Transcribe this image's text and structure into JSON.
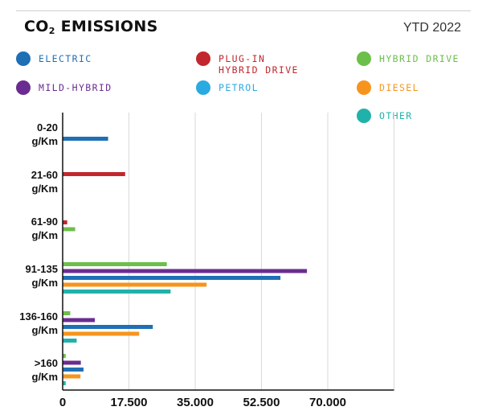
{
  "header": {
    "title_main": "CO",
    "title_sub": "2",
    "title_rest": " EMISSIONS",
    "period": "YTD 2022"
  },
  "colors": {
    "electric": "#1f6fb5",
    "plug_in_hybrid": "#c1272d",
    "hybrid": "#6cbf4a",
    "mild_hybrid": "#6a2c91",
    "petrol": "#29aae1",
    "diesel": "#f7941d",
    "other": "#20b2aa"
  },
  "legend": [
    {
      "key": "electric",
      "label": "ELECTRIC",
      "color": "#1f6fb5"
    },
    {
      "key": "plug_in_hybrid",
      "label": "PLUG-IN\nHYBRID DRIVE",
      "color": "#c1272d"
    },
    {
      "key": "hybrid",
      "label": "HYBRID DRIVE",
      "color": "#6cbf4a"
    },
    {
      "key": "mild_hybrid",
      "label": "MILD-HYBRID",
      "color": "#6a2c91"
    },
    {
      "key": "petrol",
      "label": "PETROL",
      "color": "#29aae1"
    },
    {
      "key": "diesel",
      "label": "DIESEL",
      "color": "#f7941d"
    },
    {
      "key": "other",
      "label": "OTHER",
      "color": "#20b2aa"
    }
  ],
  "chart_data": {
    "type": "bar",
    "orientation": "horizontal",
    "title": "CO2 EMISSIONS",
    "subtitle": "YTD 2022",
    "categories": [
      "0-20\ng/Km",
      "21-60\ng/Km",
      "61-90\ng/Km",
      "91-135\ng/Km",
      "136-160\ng/Km",
      ">160\ng/Km"
    ],
    "xlim": [
      0,
      87500
    ],
    "xticks": [
      0,
      17500,
      35000,
      52500,
      70000
    ],
    "xtick_labels": [
      "0",
      "17.500",
      "35.000",
      "52.500",
      "70.000"
    ],
    "grid": "vertical",
    "legend_position": "top",
    "bars": [
      [
        {
          "series": "electric",
          "value": 12000,
          "color": "#1f6fb5"
        }
      ],
      [
        {
          "series": "plug_in_hybrid",
          "value": 16500,
          "color": "#c1272d"
        }
      ],
      [
        {
          "series": "plug_in_hybrid",
          "value": 1200,
          "color": "#c1272d"
        },
        {
          "series": "hybrid",
          "value": 3300,
          "color": "#6cbf4a"
        }
      ],
      [
        {
          "series": "hybrid",
          "value": 27500,
          "color": "#6cbf4a"
        },
        {
          "series": "mild_hybrid",
          "value": 64500,
          "color": "#6a2c91"
        },
        {
          "series": "electric",
          "value": 57500,
          "color": "#1f6fb5"
        },
        {
          "series": "diesel",
          "value": 38000,
          "color": "#f7941d"
        },
        {
          "series": "other",
          "value": 28500,
          "color": "#20b2aa"
        }
      ],
      [
        {
          "series": "hybrid",
          "value": 2000,
          "color": "#6cbf4a"
        },
        {
          "series": "mild_hybrid",
          "value": 8500,
          "color": "#6a2c91"
        },
        {
          "series": "electric",
          "value": 23800,
          "color": "#1f6fb5"
        },
        {
          "series": "diesel",
          "value": 20200,
          "color": "#f7941d"
        },
        {
          "series": "other",
          "value": 3700,
          "color": "#20b2aa"
        }
      ],
      [
        {
          "series": "hybrid",
          "value": 800,
          "color": "#6cbf4a"
        },
        {
          "series": "mild_hybrid",
          "value": 4800,
          "color": "#6a2c91"
        },
        {
          "series": "electric",
          "value": 5500,
          "color": "#1f6fb5"
        },
        {
          "series": "diesel",
          "value": 4700,
          "color": "#f7941d"
        },
        {
          "series": "other",
          "value": 800,
          "color": "#20b2aa"
        }
      ]
    ]
  }
}
